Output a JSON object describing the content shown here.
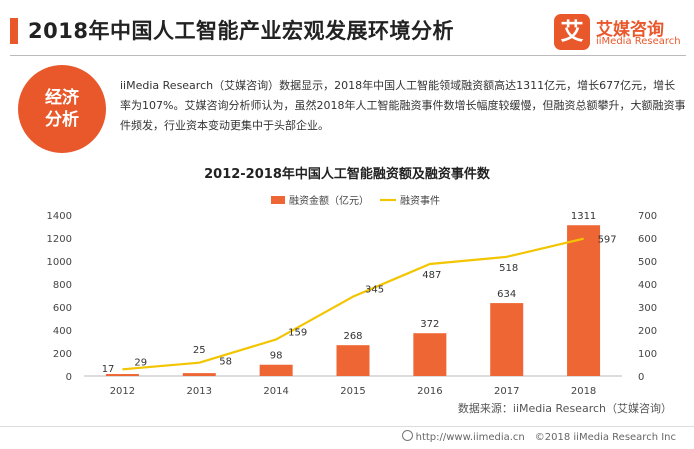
{
  "header": {
    "title": "2018年中国人工智能产业宏观发展环境分析"
  },
  "logo": {
    "glyph": "艾",
    "name": "艾媒咨询",
    "sub": "iiMedia Research",
    "icon": "iimedia-logo"
  },
  "badge": {
    "line1": "经济",
    "line2": "分析"
  },
  "summary": "iiMedia Research（艾媒咨询）数据显示，2018年中国人工智能领域融资额高达1311亿元，增长677亿元，增长率为107%。艾媒咨询分析师认为，虽然2018年人工智能融资事件数增长幅度较缓慢，但融资总额攀升，大额融资事件频发，行业资本变动更集中于头部企业。",
  "chart_data": {
    "type": "bar",
    "title": "2012-2018年中国人工智能融资额及融资事件数",
    "categories": [
      "2012",
      "2013",
      "2014",
      "2015",
      "2016",
      "2017",
      "2018"
    ],
    "series": [
      {
        "name": "融资金额（亿元）",
        "type": "bar",
        "axis": "left",
        "color": "#ee6633",
        "values": [
          17,
          25,
          98,
          268,
          372,
          634,
          1311
        ]
      },
      {
        "name": "融资事件",
        "type": "line",
        "axis": "right",
        "color": "#f2c500",
        "values": [
          29,
          58,
          159,
          345,
          487,
          518,
          597
        ]
      }
    ],
    "y_left": {
      "min": 0,
      "max": 1400,
      "ticks": [
        "0",
        "200",
        "400",
        "600",
        "800",
        "1000",
        "1200",
        "1400"
      ]
    },
    "y_right": {
      "min": 0,
      "max": 700,
      "ticks": [
        "0",
        "100",
        "200",
        "300",
        "400",
        "500",
        "600",
        "700"
      ]
    },
    "legend": "top-center",
    "grid": false
  },
  "source": "数据来源：iiMedia Research（艾媒咨询）",
  "footer": {
    "url": "http://www.iimedia.cn",
    "copyright": "©2018  iiMedia Research  Inc"
  }
}
